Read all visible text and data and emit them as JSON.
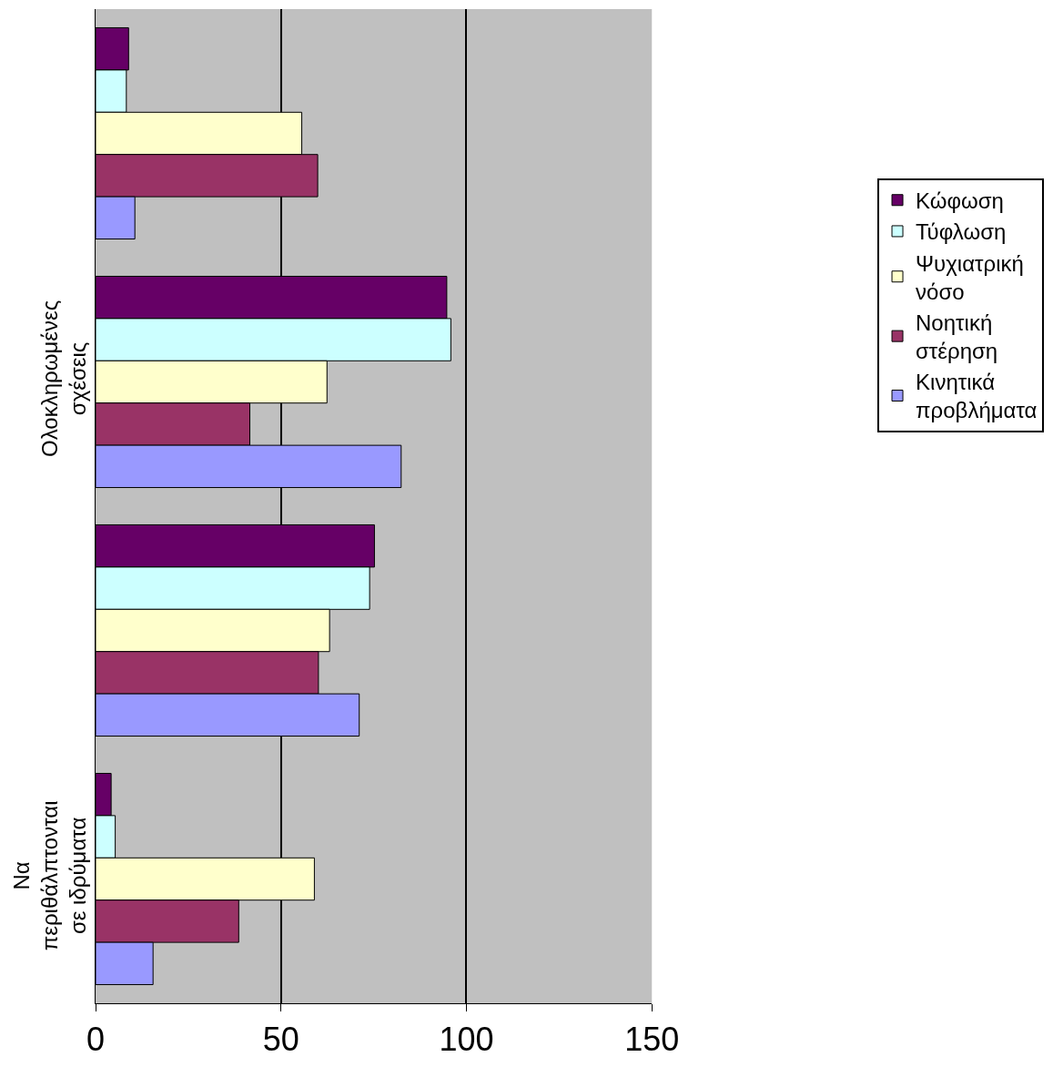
{
  "chart_data": {
    "type": "bar",
    "orientation": "horizontal",
    "categories": [
      null,
      "Ολοκληρωμένες σχέσεις",
      null,
      "Να περιθάλπτονται σε ιδρύματα"
    ],
    "series": [
      {
        "name": "Κώφωση",
        "color": "#660066",
        "values": [
          8.9,
          94.7,
          75.2,
          4.2
        ]
      },
      {
        "name": "Τύφλωση",
        "color": "#ccffff",
        "values": [
          8.3,
          95.8,
          73.9,
          5.3
        ]
      },
      {
        "name": "Ψυχιατρική νόσο",
        "color": "#ffffcc",
        "values": [
          55.6,
          62.4,
          63.1,
          59.0
        ]
      },
      {
        "name": "Νοητική στέρηση",
        "color": "#993366",
        "values": [
          59.9,
          41.6,
          60.1,
          38.6
        ]
      },
      {
        "name": "Κινητικά προβλήματα",
        "color": "#9999ff",
        "values": [
          10.6,
          82.4,
          71.1,
          15.5
        ]
      }
    ],
    "xlim": [
      0,
      150
    ],
    "xticks": [
      0,
      50,
      100,
      150
    ],
    "grid": "x",
    "legend": "right"
  }
}
